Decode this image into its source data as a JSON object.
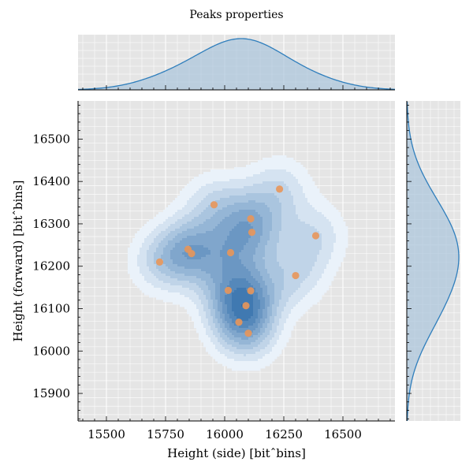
{
  "chart_data": {
    "type": "scatter",
    "title": "Peaks properties",
    "xlabel": "Height (side) [bitˆbins]",
    "ylabel": "Height (forward) [bitˆbins]",
    "xlim": [
      15380,
      16720
    ],
    "ylim": [
      15835,
      16590
    ],
    "xticks": [
      15500,
      15750,
      16000,
      16250,
      16500
    ],
    "yticks": [
      15900,
      16000,
      16100,
      16200,
      16300,
      16400,
      16500
    ],
    "xtick_labels": [
      "15500",
      "15750",
      "16000",
      "16250",
      "16500"
    ],
    "ytick_labels": [
      "15900",
      "16000",
      "16100",
      "16200",
      "16300",
      "16400",
      "16500"
    ],
    "grid": true,
    "kde_fill": true,
    "marginal_x": "kde",
    "marginal_y": "kde",
    "colors": {
      "points": "#e8965a",
      "kde_line": "#2f7ebc",
      "kde_fill": "#a9c4dc",
      "panel_bg": "#e5e5e5",
      "grid": "#ffffff",
      "kde_low": "#eaf2fa",
      "kde_high": "#2b6aa8"
    },
    "points": [
      {
        "x": 15725,
        "y": 16210
      },
      {
        "x": 15845,
        "y": 16240
      },
      {
        "x": 15860,
        "y": 16230
      },
      {
        "x": 15955,
        "y": 16345
      },
      {
        "x": 16025,
        "y": 16232
      },
      {
        "x": 16110,
        "y": 16312
      },
      {
        "x": 16115,
        "y": 16280
      },
      {
        "x": 16232,
        "y": 16382
      },
      {
        "x": 16385,
        "y": 16272
      },
      {
        "x": 16300,
        "y": 16178
      },
      {
        "x": 16015,
        "y": 16143
      },
      {
        "x": 16110,
        "y": 16142
      },
      {
        "x": 16090,
        "y": 16107
      },
      {
        "x": 16060,
        "y": 16068
      },
      {
        "x": 16100,
        "y": 16042
      }
    ]
  }
}
